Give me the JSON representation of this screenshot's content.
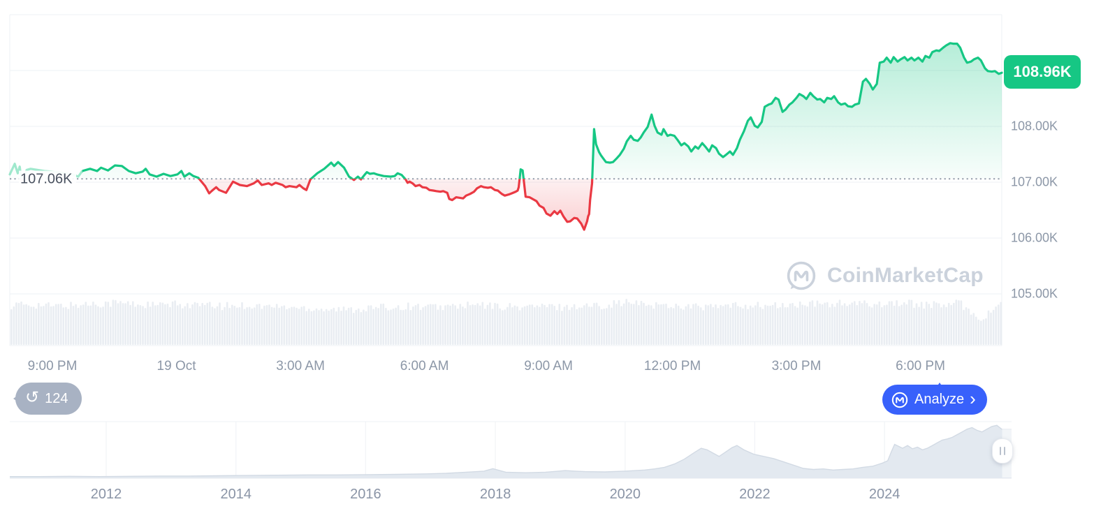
{
  "colors": {
    "up_green": "#16C784",
    "down_red": "#EA3943",
    "brand_blue": "#3861FB",
    "badge_gray": "#A8B2C3",
    "grid": "#F1F3F6",
    "axis_text": "#8C97A7",
    "watermark_gray": "#CBD2DC",
    "volume_bar": "#E9EDF2",
    "nav_fill": "#E3E9F0",
    "nav_stroke": "#D2DAE4"
  },
  "watermark": {
    "text": "CoinMarketCap"
  },
  "toolbar": {
    "history_count": "124",
    "analyze_label": "Analyze",
    "chevron": "›",
    "history_icon": "↺"
  },
  "chart_data": {
    "type": "line",
    "description": "24h BTC price line vs previous-close baseline; green above 107.06K, red below; volume bars beneath; all-time range navigator at bottom",
    "current_price": {
      "label": "108.96K",
      "value": 108.96
    },
    "baseline": {
      "label": "107.06K",
      "value": 107.06
    },
    "ylim": [
      104.14,
      110.0
    ],
    "y_grid_prices": [
      110,
      109,
      108,
      107,
      106,
      105
    ],
    "y_ticks": [
      {
        "label": "108.00K",
        "price": 108
      },
      {
        "label": "107.00K",
        "price": 107
      },
      {
        "label": "106.00K",
        "price": 106
      },
      {
        "label": "105.00K",
        "price": 105
      }
    ],
    "x_ticks": [
      {
        "label": "9:00 PM",
        "f": 0.043
      },
      {
        "label": "19 Oct",
        "f": 0.168
      },
      {
        "label": "3:00 AM",
        "f": 0.293
      },
      {
        "label": "6:00 AM",
        "f": 0.418
      },
      {
        "label": "9:00 AM",
        "f": 0.543
      },
      {
        "label": "12:00 PM",
        "f": 0.668
      },
      {
        "label": "3:00 PM",
        "f": 0.793
      },
      {
        "label": "6:00 PM",
        "f": 0.918
      }
    ],
    "fade_before_f": 0.073,
    "points": [
      [
        0,
        107.14
      ],
      [
        0.005,
        107.33
      ],
      [
        0.008,
        107.16
      ],
      [
        0.01,
        107.28
      ],
      [
        0.012,
        107.02
      ],
      [
        0.014,
        107.0
      ],
      [
        0.017,
        107.22
      ],
      [
        0.021,
        107.24
      ],
      [
        0.035,
        107.2
      ],
      [
        0.049,
        107.18
      ],
      [
        0.063,
        107.14
      ],
      [
        0.069,
        107.1
      ],
      [
        0.073,
        107.2
      ],
      [
        0.081,
        107.24
      ],
      [
        0.088,
        107.2
      ],
      [
        0.092,
        107.26
      ],
      [
        0.099,
        107.21
      ],
      [
        0.106,
        107.3
      ],
      [
        0.113,
        107.29
      ],
      [
        0.12,
        107.2
      ],
      [
        0.127,
        107.16
      ],
      [
        0.134,
        107.19
      ],
      [
        0.137,
        107.24
      ],
      [
        0.141,
        107.14
      ],
      [
        0.148,
        107.1
      ],
      [
        0.155,
        107.15
      ],
      [
        0.162,
        107.11
      ],
      [
        0.169,
        107.14
      ],
      [
        0.173,
        107.2
      ],
      [
        0.176,
        107.1
      ],
      [
        0.181,
        107.16
      ],
      [
        0.185,
        107.11
      ],
      [
        0.19,
        107.08
      ],
      [
        0.197,
        106.93
      ],
      [
        0.201,
        106.8
      ],
      [
        0.204,
        106.85
      ],
      [
        0.208,
        106.91
      ],
      [
        0.211,
        106.86
      ],
      [
        0.218,
        106.81
      ],
      [
        0.225,
        107.01
      ],
      [
        0.232,
        106.95
      ],
      [
        0.239,
        106.93
      ],
      [
        0.246,
        106.98
      ],
      [
        0.25,
        107.03
      ],
      [
        0.254,
        106.95
      ],
      [
        0.261,
        106.98
      ],
      [
        0.264,
        106.95
      ],
      [
        0.268,
        106.99
      ],
      [
        0.275,
        106.95
      ],
      [
        0.278,
        106.91
      ],
      [
        0.282,
        106.93
      ],
      [
        0.289,
        106.91
      ],
      [
        0.292,
        106.95
      ],
      [
        0.296,
        106.89
      ],
      [
        0.299,
        106.86
      ],
      [
        0.303,
        107.05
      ],
      [
        0.31,
        107.16
      ],
      [
        0.317,
        107.24
      ],
      [
        0.324,
        107.35
      ],
      [
        0.327,
        107.29
      ],
      [
        0.331,
        107.36
      ],
      [
        0.337,
        107.26
      ],
      [
        0.342,
        107.1
      ],
      [
        0.347,
        107.04
      ],
      [
        0.351,
        107.1
      ],
      [
        0.354,
        107.05
      ],
      [
        0.358,
        107.14
      ],
      [
        0.36,
        107.18
      ],
      [
        0.363,
        107.15
      ],
      [
        0.367,
        107.16
      ],
      [
        0.37,
        107.14
      ],
      [
        0.377,
        107.11
      ],
      [
        0.384,
        107.1
      ],
      [
        0.388,
        107.11
      ],
      [
        0.391,
        107.16
      ],
      [
        0.395,
        107.13
      ],
      [
        0.399,
        107.05
      ],
      [
        0.401,
        106.99
      ],
      [
        0.403,
        107.01
      ],
      [
        0.406,
        106.98
      ],
      [
        0.409,
        106.93
      ],
      [
        0.413,
        106.95
      ],
      [
        0.416,
        106.91
      ],
      [
        0.42,
        106.9
      ],
      [
        0.423,
        106.86
      ],
      [
        0.427,
        106.85
      ],
      [
        0.43,
        106.84
      ],
      [
        0.434,
        106.83
      ],
      [
        0.437,
        106.84
      ],
      [
        0.441,
        106.81
      ],
      [
        0.443,
        106.7
      ],
      [
        0.446,
        106.68
      ],
      [
        0.45,
        106.73
      ],
      [
        0.457,
        106.71
      ],
      [
        0.46,
        106.76
      ],
      [
        0.464,
        106.79
      ],
      [
        0.468,
        106.83
      ],
      [
        0.471,
        106.89
      ],
      [
        0.475,
        106.93
      ],
      [
        0.478,
        106.91
      ],
      [
        0.482,
        106.9
      ],
      [
        0.485,
        106.91
      ],
      [
        0.489,
        106.86
      ],
      [
        0.492,
        106.85
      ],
      [
        0.496,
        106.79
      ],
      [
        0.499,
        106.76
      ],
      [
        0.503,
        106.78
      ],
      [
        0.506,
        106.8
      ],
      [
        0.51,
        106.83
      ],
      [
        0.512,
        106.85
      ],
      [
        0.513,
        106.91
      ],
      [
        0.515,
        107.23
      ],
      [
        0.517,
        107.21
      ],
      [
        0.518,
        107.05
      ],
      [
        0.52,
        106.74
      ],
      [
        0.524,
        106.73
      ],
      [
        0.527,
        106.7
      ],
      [
        0.531,
        106.66
      ],
      [
        0.534,
        106.58
      ],
      [
        0.538,
        106.54
      ],
      [
        0.541,
        106.44
      ],
      [
        0.545,
        106.4
      ],
      [
        0.549,
        106.48
      ],
      [
        0.552,
        106.43
      ],
      [
        0.555,
        106.49
      ],
      [
        0.558,
        106.39
      ],
      [
        0.562,
        106.29
      ],
      [
        0.565,
        106.3
      ],
      [
        0.569,
        106.36
      ],
      [
        0.572,
        106.35
      ],
      [
        0.576,
        106.26
      ],
      [
        0.579,
        106.15
      ],
      [
        0.582,
        106.3
      ],
      [
        0.583,
        106.39
      ],
      [
        0.584,
        106.43
      ],
      [
        0.585,
        106.68
      ],
      [
        0.587,
        106.98
      ],
      [
        0.589,
        107.95
      ],
      [
        0.591,
        107.68
      ],
      [
        0.594,
        107.54
      ],
      [
        0.596,
        107.48
      ],
      [
        0.598,
        107.43
      ],
      [
        0.601,
        107.36
      ],
      [
        0.605,
        107.35
      ],
      [
        0.608,
        107.36
      ],
      [
        0.612,
        107.43
      ],
      [
        0.615,
        107.49
      ],
      [
        0.619,
        107.6
      ],
      [
        0.622,
        107.73
      ],
      [
        0.626,
        107.83
      ],
      [
        0.629,
        107.76
      ],
      [
        0.633,
        107.74
      ],
      [
        0.636,
        107.8
      ],
      [
        0.639,
        107.89
      ],
      [
        0.643,
        107.99
      ],
      [
        0.647,
        108.21
      ],
      [
        0.65,
        108.01
      ],
      [
        0.653,
        107.89
      ],
      [
        0.657,
        107.85
      ],
      [
        0.659,
        107.95
      ],
      [
        0.663,
        107.83
      ],
      [
        0.666,
        107.85
      ],
      [
        0.67,
        107.83
      ],
      [
        0.673,
        107.76
      ],
      [
        0.677,
        107.66
      ],
      [
        0.68,
        107.7
      ],
      [
        0.684,
        107.64
      ],
      [
        0.687,
        107.55
      ],
      [
        0.691,
        107.64
      ],
      [
        0.694,
        107.6
      ],
      [
        0.698,
        107.7
      ],
      [
        0.701,
        107.64
      ],
      [
        0.705,
        107.55
      ],
      [
        0.708,
        107.66
      ],
      [
        0.712,
        107.61
      ],
      [
        0.715,
        107.51
      ],
      [
        0.719,
        107.45
      ],
      [
        0.722,
        107.49
      ],
      [
        0.726,
        107.55
      ],
      [
        0.729,
        107.49
      ],
      [
        0.733,
        107.61
      ],
      [
        0.736,
        107.76
      ],
      [
        0.74,
        107.91
      ],
      [
        0.744,
        108.1
      ],
      [
        0.747,
        108.16
      ],
      [
        0.751,
        108.01
      ],
      [
        0.754,
        107.98
      ],
      [
        0.758,
        108.08
      ],
      [
        0.761,
        108.35
      ],
      [
        0.765,
        108.39
      ],
      [
        0.768,
        108.41
      ],
      [
        0.772,
        108.51
      ],
      [
        0.775,
        108.48
      ],
      [
        0.779,
        108.26
      ],
      [
        0.782,
        108.3
      ],
      [
        0.786,
        108.39
      ],
      [
        0.789,
        108.43
      ],
      [
        0.793,
        108.51
      ],
      [
        0.796,
        108.58
      ],
      [
        0.8,
        108.54
      ],
      [
        0.803,
        108.49
      ],
      [
        0.807,
        108.6
      ],
      [
        0.81,
        108.54
      ],
      [
        0.814,
        108.48
      ],
      [
        0.817,
        108.49
      ],
      [
        0.821,
        108.43
      ],
      [
        0.824,
        108.51
      ],
      [
        0.828,
        108.49
      ],
      [
        0.831,
        108.54
      ],
      [
        0.835,
        108.43
      ],
      [
        0.838,
        108.39
      ],
      [
        0.842,
        108.41
      ],
      [
        0.845,
        108.36
      ],
      [
        0.849,
        108.35
      ],
      [
        0.852,
        108.39
      ],
      [
        0.856,
        108.41
      ],
      [
        0.86,
        108.8
      ],
      [
        0.863,
        108.85
      ],
      [
        0.867,
        108.76
      ],
      [
        0.87,
        108.66
      ],
      [
        0.874,
        108.76
      ],
      [
        0.877,
        109.14
      ],
      [
        0.881,
        109.16
      ],
      [
        0.884,
        109.23
      ],
      [
        0.888,
        109.14
      ],
      [
        0.891,
        109.24
      ],
      [
        0.895,
        109.16
      ],
      [
        0.898,
        109.2
      ],
      [
        0.902,
        109.24
      ],
      [
        0.905,
        109.18
      ],
      [
        0.909,
        109.23
      ],
      [
        0.912,
        109.18
      ],
      [
        0.916,
        109.23
      ],
      [
        0.92,
        109.16
      ],
      [
        0.923,
        109.26
      ],
      [
        0.927,
        109.23
      ],
      [
        0.93,
        109.33
      ],
      [
        0.934,
        109.36
      ],
      [
        0.937,
        109.35
      ],
      [
        0.941,
        109.41
      ],
      [
        0.944,
        109.45
      ],
      [
        0.948,
        109.49
      ],
      [
        0.951,
        109.48
      ],
      [
        0.955,
        109.48
      ],
      [
        0.958,
        109.41
      ],
      [
        0.962,
        109.23
      ],
      [
        0.965,
        109.14
      ],
      [
        0.969,
        109.16
      ],
      [
        0.972,
        109.2
      ],
      [
        0.976,
        109.23
      ],
      [
        0.979,
        109.18
      ],
      [
        0.983,
        109.04
      ],
      [
        0.986,
        108.99
      ],
      [
        0.99,
        108.98
      ],
      [
        0.993,
        108.99
      ],
      [
        0.997,
        108.94
      ],
      [
        1,
        108.96
      ]
    ],
    "volume_profile": [
      0.88,
      0.9,
      0.86,
      0.88,
      0.92,
      0.94,
      0.9,
      0.88,
      0.9,
      0.88,
      0.86,
      0.88,
      0.86,
      0.84,
      0.82,
      0.8,
      0.78,
      0.82,
      0.84,
      0.86,
      0.84,
      0.86,
      0.88,
      0.86,
      0.84,
      0.86,
      0.84,
      0.86,
      0.88,
      0.95,
      0.9,
      0.88,
      0.86,
      0.84,
      0.86,
      0.88,
      0.86,
      0.88,
      0.9,
      0.92,
      0.9,
      0.92,
      0.94,
      0.9,
      0.88,
      0.92,
      0.55,
      1.0
    ],
    "navigator": {
      "year_ticks": [
        {
          "label": "2012",
          "f": 0.0972
        },
        {
          "label": "2014",
          "f": 0.228
        },
        {
          "label": "2016",
          "f": 0.3587
        },
        {
          "label": "2018",
          "f": 0.4895
        },
        {
          "label": "2020",
          "f": 0.6203
        },
        {
          "label": "2022",
          "f": 0.751
        },
        {
          "label": "2024",
          "f": 0.8818
        }
      ],
      "points": [
        [
          0,
          0.03
        ],
        [
          0.03,
          0.03
        ],
        [
          0.06,
          0.035
        ],
        [
          0.09,
          0.03
        ],
        [
          0.12,
          0.035
        ],
        [
          0.15,
          0.04
        ],
        [
          0.18,
          0.04
        ],
        [
          0.21,
          0.045
        ],
        [
          0.24,
          0.05
        ],
        [
          0.27,
          0.055
        ],
        [
          0.3,
          0.06
        ],
        [
          0.33,
          0.06
        ],
        [
          0.36,
          0.065
        ],
        [
          0.39,
          0.07
        ],
        [
          0.42,
          0.08
        ],
        [
          0.44,
          0.09
        ],
        [
          0.46,
          0.11
        ],
        [
          0.478,
          0.13
        ],
        [
          0.487,
          0.175
        ],
        [
          0.492,
          0.15
        ],
        [
          0.5,
          0.11
        ],
        [
          0.52,
          0.1
        ],
        [
          0.54,
          0.11
        ],
        [
          0.55,
          0.125
        ],
        [
          0.56,
          0.14
        ],
        [
          0.57,
          0.13
        ],
        [
          0.58,
          0.12
        ],
        [
          0.6,
          0.115
        ],
        [
          0.62,
          0.13
        ],
        [
          0.64,
          0.15
        ],
        [
          0.65,
          0.17
        ],
        [
          0.66,
          0.2
        ],
        [
          0.67,
          0.26
        ],
        [
          0.68,
          0.35
        ],
        [
          0.69,
          0.47
        ],
        [
          0.697,
          0.55
        ],
        [
          0.703,
          0.52
        ],
        [
          0.71,
          0.45
        ],
        [
          0.715,
          0.4
        ],
        [
          0.72,
          0.46
        ],
        [
          0.728,
          0.56
        ],
        [
          0.733,
          0.6
        ],
        [
          0.74,
          0.52
        ],
        [
          0.75,
          0.44
        ],
        [
          0.76,
          0.4
        ],
        [
          0.77,
          0.36
        ],
        [
          0.78,
          0.3
        ],
        [
          0.79,
          0.24
        ],
        [
          0.8,
          0.18
        ],
        [
          0.81,
          0.16
        ],
        [
          0.82,
          0.17
        ],
        [
          0.83,
          0.15
        ],
        [
          0.84,
          0.16
        ],
        [
          0.85,
          0.17
        ],
        [
          0.86,
          0.2
        ],
        [
          0.87,
          0.22
        ],
        [
          0.875,
          0.25
        ],
        [
          0.88,
          0.28
        ],
        [
          0.885,
          0.32
        ],
        [
          0.889,
          0.5
        ],
        [
          0.892,
          0.62
        ],
        [
          0.9,
          0.55
        ],
        [
          0.905,
          0.6
        ],
        [
          0.91,
          0.54
        ],
        [
          0.915,
          0.57
        ],
        [
          0.92,
          0.52
        ],
        [
          0.925,
          0.55
        ],
        [
          0.93,
          0.6
        ],
        [
          0.935,
          0.65
        ],
        [
          0.94,
          0.7
        ],
        [
          0.945,
          0.72
        ],
        [
          0.95,
          0.75
        ],
        [
          0.955,
          0.8
        ],
        [
          0.96,
          0.85
        ],
        [
          0.965,
          0.9
        ],
        [
          0.97,
          0.93
        ],
        [
          0.975,
          0.88
        ],
        [
          0.98,
          0.85
        ],
        [
          0.985,
          0.9
        ],
        [
          0.99,
          0.95
        ],
        [
          0.995,
          0.97
        ],
        [
          1,
          0.9
        ]
      ]
    }
  }
}
